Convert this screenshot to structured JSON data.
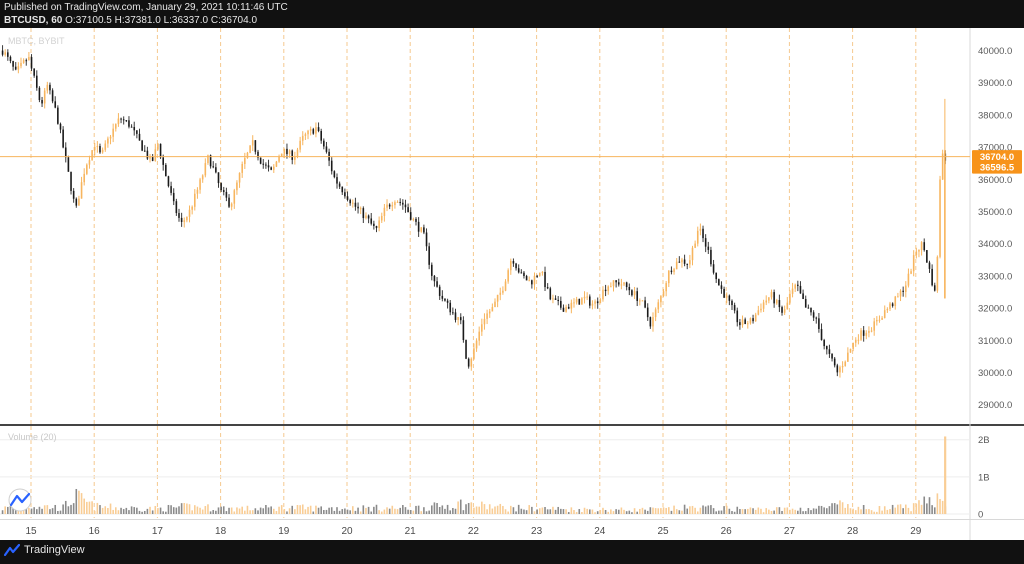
{
  "header": {
    "published": "Published on TradingView.com, January 29, 2021 10:11:46 UTC",
    "symbol": "BTCUSD, 60",
    "o_label": "O:",
    "o_value": "37100.5",
    "h_label": "H:",
    "h_value": "37381.0",
    "l_label": "L:",
    "l_value": "36337.0",
    "c_label": "C:",
    "c_value": "36704.0"
  },
  "watermark": "MBTC, BYBIT",
  "footer": {
    "brand": "TradingView"
  },
  "colors": {
    "up": "#f7b55e",
    "down": "#1a1a1a",
    "wick_down": "#3a3a3a",
    "grid": "#f5c98f",
    "price_line": "#f7b55e",
    "vol_up": "#f9cd95",
    "vol_down": "#8a8a8a"
  },
  "chart_data": [
    {
      "type": "candlestick",
      "x_ticks": [
        "15",
        "16",
        "17",
        "18",
        "19",
        "20",
        "21",
        "22",
        "23",
        "24",
        "25",
        "26",
        "27",
        "28",
        "29"
      ],
      "y_ticks": [
        "29000.0",
        "30000.0",
        "31000.0",
        "32000.0",
        "33000.0",
        "34000.0",
        "35000.0",
        "36000.0",
        "37000.0",
        "38000.0",
        "39000.0",
        "40000.0"
      ],
      "ylim": [
        28400,
        40700
      ],
      "last_price": "36704.0",
      "second_price": "36596.5",
      "path_points": [
        [
          14.6,
          40000
        ],
        [
          14.8,
          39300
        ],
        [
          15.0,
          39800
        ],
        [
          15.2,
          38300
        ],
        [
          15.3,
          38900
        ],
        [
          15.45,
          38000
        ],
        [
          15.55,
          37000
        ],
        [
          15.65,
          36000
        ],
        [
          15.75,
          35000
        ],
        [
          15.8,
          35500
        ],
        [
          15.9,
          36400
        ],
        [
          16.05,
          37100
        ],
        [
          16.15,
          36700
        ],
        [
          16.3,
          37400
        ],
        [
          16.45,
          37900
        ],
        [
          16.6,
          37700
        ],
        [
          16.8,
          37000
        ],
        [
          16.95,
          36500
        ],
        [
          17.05,
          37100
        ],
        [
          17.15,
          36300
        ],
        [
          17.3,
          35200
        ],
        [
          17.42,
          34600
        ],
        [
          17.55,
          35000
        ],
        [
          17.7,
          35800
        ],
        [
          17.85,
          36700
        ],
        [
          17.95,
          36200
        ],
        [
          18.05,
          35600
        ],
        [
          18.2,
          35200
        ],
        [
          18.4,
          36500
        ],
        [
          18.55,
          37100
        ],
        [
          18.7,
          36500
        ],
        [
          18.85,
          36200
        ],
        [
          19.0,
          36900
        ],
        [
          19.2,
          36700
        ],
        [
          19.35,
          37300
        ],
        [
          19.55,
          37600
        ],
        [
          19.7,
          36900
        ],
        [
          19.85,
          36000
        ],
        [
          20.0,
          35600
        ],
        [
          20.15,
          35200
        ],
        [
          20.35,
          34800
        ],
        [
          20.5,
          34400
        ],
        [
          20.65,
          35100
        ],
        [
          20.8,
          35400
        ],
        [
          20.95,
          35200
        ],
        [
          21.1,
          34700
        ],
        [
          21.25,
          34300
        ],
        [
          21.4,
          32900
        ],
        [
          21.55,
          32300
        ],
        [
          21.7,
          31900
        ],
        [
          21.85,
          31500
        ],
        [
          21.95,
          30200
        ],
        [
          22.05,
          30700
        ],
        [
          22.2,
          31700
        ],
        [
          22.35,
          32000
        ],
        [
          22.5,
          32600
        ],
        [
          22.65,
          33600
        ],
        [
          22.8,
          33000
        ],
        [
          22.95,
          32800
        ],
        [
          23.1,
          33200
        ],
        [
          23.25,
          32300
        ],
        [
          23.45,
          32000
        ],
        [
          23.6,
          32100
        ],
        [
          23.8,
          32300
        ],
        [
          23.95,
          32100
        ],
        [
          24.15,
          32700
        ],
        [
          24.35,
          32800
        ],
        [
          24.5,
          32600
        ],
        [
          24.7,
          32200
        ],
        [
          24.85,
          31500
        ],
        [
          25.0,
          32300
        ],
        [
          25.15,
          33200
        ],
        [
          25.3,
          33500
        ],
        [
          25.45,
          33400
        ],
        [
          25.6,
          34500
        ],
        [
          25.75,
          33800
        ],
        [
          25.9,
          32800
        ],
        [
          26.05,
          32300
        ],
        [
          26.25,
          31500
        ],
        [
          26.45,
          31600
        ],
        [
          26.6,
          32100
        ],
        [
          26.75,
          32400
        ],
        [
          26.95,
          31800
        ],
        [
          27.05,
          32400
        ],
        [
          27.15,
          32700
        ],
        [
          27.3,
          32000
        ],
        [
          27.45,
          31700
        ],
        [
          27.6,
          30800
        ],
        [
          27.8,
          30000
        ],
        [
          27.95,
          30500
        ],
        [
          28.1,
          31100
        ],
        [
          28.25,
          31300
        ],
        [
          28.4,
          31500
        ],
        [
          28.55,
          31900
        ],
        [
          28.75,
          32300
        ],
        [
          28.9,
          32800
        ],
        [
          29.05,
          33800
        ],
        [
          29.15,
          34000
        ],
        [
          29.28,
          33000
        ],
        [
          29.36,
          32300
        ],
        [
          29.42,
          35800
        ],
        [
          29.46,
          36900
        ],
        [
          29.5,
          36700
        ]
      ],
      "volume_label": "Volume (20)",
      "volume_y_ticks": [
        "0",
        "1B",
        "2B"
      ],
      "volume_ylim": [
        0,
        26
      ],
      "volume_shape": [
        [
          14.6,
          2
        ],
        [
          15.0,
          3
        ],
        [
          15.5,
          2
        ],
        [
          15.7,
          6
        ],
        [
          16.0,
          2.5
        ],
        [
          16.5,
          2
        ],
        [
          17.0,
          1.8
        ],
        [
          17.5,
          2.5
        ],
        [
          18.0,
          2
        ],
        [
          18.5,
          1.8
        ],
        [
          19.0,
          2.2
        ],
        [
          19.5,
          2
        ],
        [
          20.0,
          2
        ],
        [
          20.5,
          2
        ],
        [
          21.0,
          2
        ],
        [
          21.4,
          2.5
        ],
        [
          21.8,
          3.5
        ],
        [
          22.0,
          3
        ],
        [
          22.3,
          2.5
        ],
        [
          22.6,
          2
        ],
        [
          23.0,
          2
        ],
        [
          23.5,
          1.6
        ],
        [
          24.0,
          1.5
        ],
        [
          24.5,
          1.4
        ],
        [
          25.0,
          1.6
        ],
        [
          25.5,
          2.2
        ],
        [
          26.0,
          1.8
        ],
        [
          26.5,
          1.6
        ],
        [
          27.0,
          1.6
        ],
        [
          27.5,
          2
        ],
        [
          27.8,
          3
        ],
        [
          28.0,
          2
        ],
        [
          28.5,
          1.8
        ],
        [
          29.0,
          2.5
        ],
        [
          29.36,
          6
        ],
        [
          29.42,
          9
        ],
        [
          29.48,
          3
        ]
      ]
    }
  ]
}
